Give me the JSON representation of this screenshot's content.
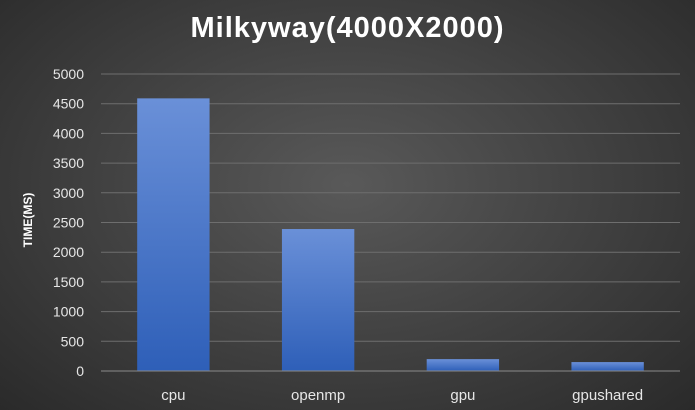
{
  "chart_data": {
    "type": "bar",
    "title": "Milkyway(4000X2000)",
    "xlabel": "",
    "ylabel": "TIME(MS)",
    "categories": [
      "cpu",
      "openmp",
      "gpu",
      "gpushared"
    ],
    "values": [
      4590,
      2390,
      200,
      150
    ],
    "ylim": [
      0,
      5000
    ],
    "yticks": [
      0,
      500,
      1000,
      1500,
      2000,
      2500,
      3000,
      3500,
      4000,
      4500,
      5000
    ],
    "grid": true,
    "legend": "none",
    "colors": {
      "bar_top": "#6a90d8",
      "bar_bottom": "#2e5fb8",
      "grid": "#6e6e6e",
      "axis": "#8a8a8a",
      "text": "#ffffff",
      "tick_text": "#e6e6e6"
    }
  }
}
